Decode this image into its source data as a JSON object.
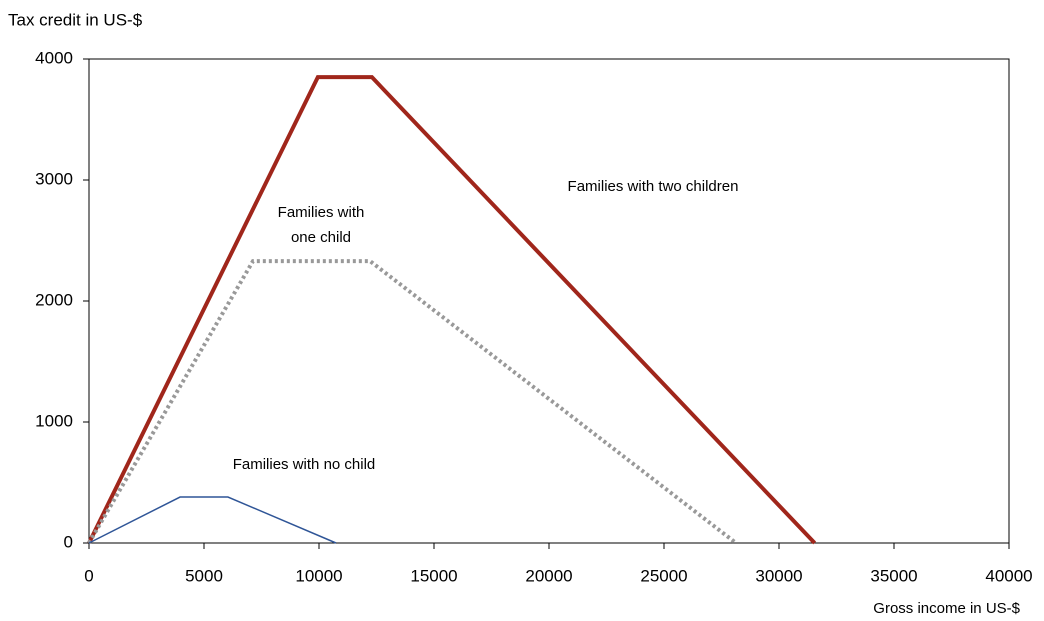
{
  "chart_data": {
    "type": "line",
    "y_label": "Tax credit in US-$",
    "x_label": "Gross income in US-$",
    "xlim": [
      0,
      40000
    ],
    "xticks": [
      0,
      5000,
      10000,
      15000,
      20000,
      25000,
      30000,
      35000,
      40000
    ],
    "ylim": [
      0,
      4000
    ],
    "yticks": [
      0,
      1000,
      2000,
      3000,
      4000
    ],
    "grid": false,
    "series": [
      {
        "name": "Families with two children",
        "color": "#a0261b",
        "style": "solid",
        "width": 4,
        "x": [
          0,
          9950,
          12300,
          31550
        ],
        "values": [
          0,
          3850,
          3850,
          0
        ]
      },
      {
        "name": "Families with\none child",
        "color": "#999999",
        "style": "dotted",
        "width": 4,
        "x": [
          0,
          7130,
          12220,
          28130
        ],
        "values": [
          0,
          2330,
          2330,
          0
        ]
      },
      {
        "name": "Families with no child",
        "color": "#2f5597",
        "style": "solid",
        "width": 1.5,
        "x": [
          0,
          3960,
          6040,
          10740
        ],
        "values": [
          0,
          380,
          380,
          0
        ]
      }
    ]
  }
}
